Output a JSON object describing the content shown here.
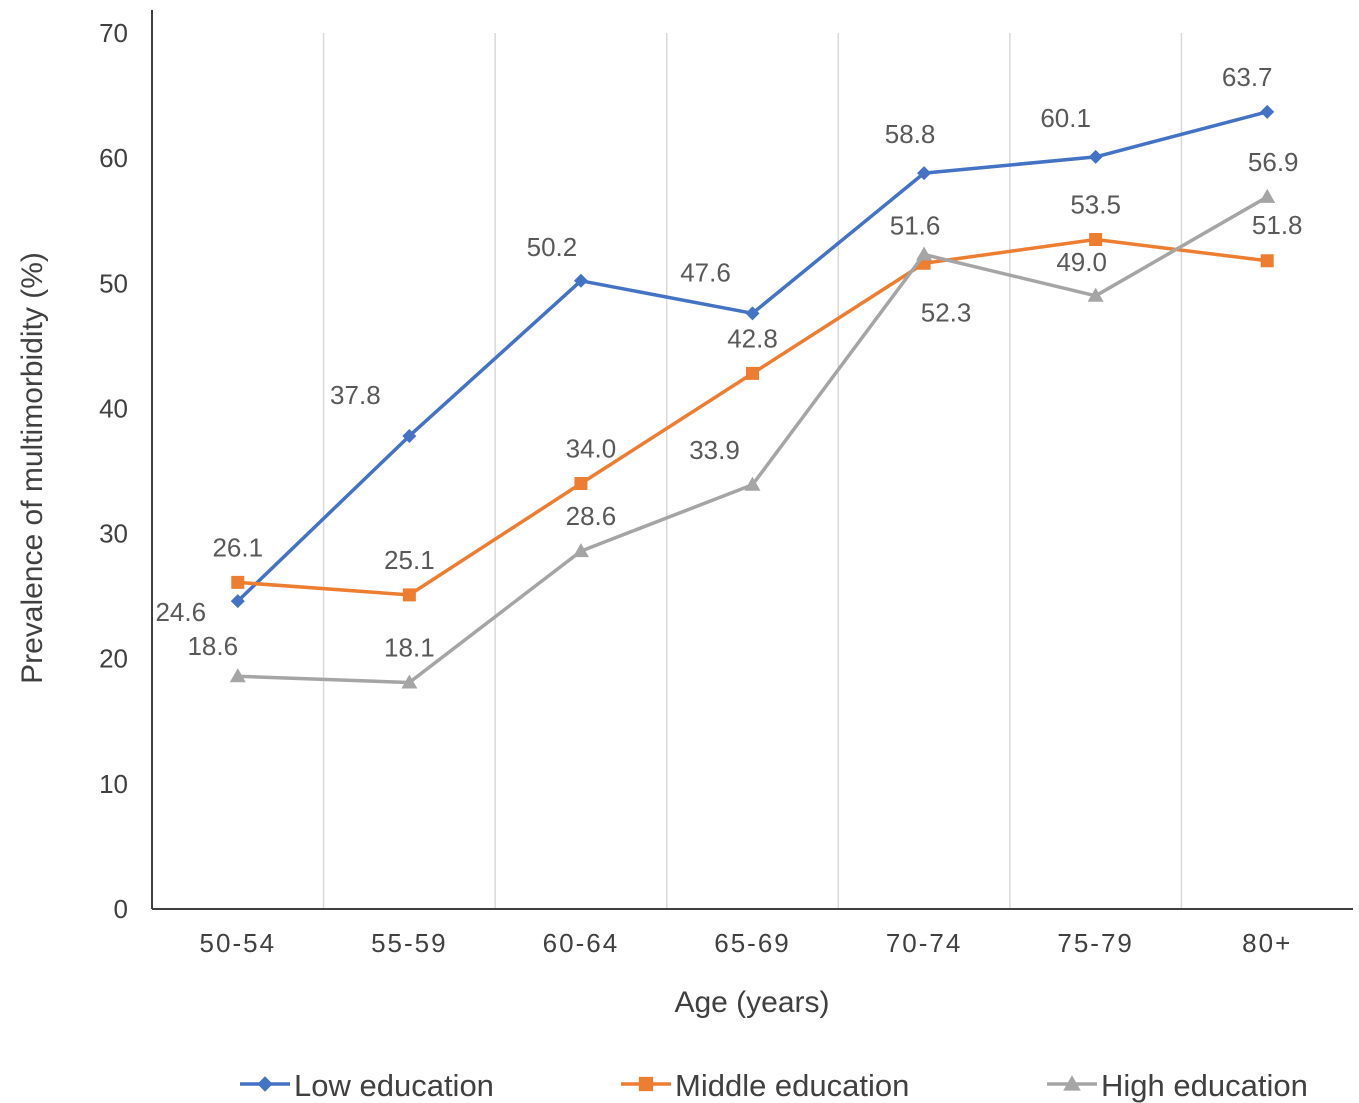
{
  "chart_data": {
    "type": "line",
    "title": "",
    "xlabel": "Age (years)",
    "ylabel": "Prevalence of multimorbidity (%)",
    "categories": [
      "50-54",
      "55-59",
      "60-64",
      "65-69",
      "70-74",
      "75-79",
      "80+"
    ],
    "ylim": [
      0,
      70
    ],
    "yticks": [
      "0",
      "10",
      "20",
      "30",
      "40",
      "50",
      "60",
      "70"
    ],
    "grid": "vertical",
    "legend_position": "bottom",
    "series": [
      {
        "name": "Low education",
        "color": "#4472c4",
        "marker": "diamond",
        "values": [
          24.6,
          37.8,
          50.2,
          47.6,
          58.8,
          60.1,
          63.7
        ],
        "labels": [
          "24.6",
          "37.8",
          "50.2",
          "47.6",
          "58.8",
          "60.1",
          "63.7"
        ]
      },
      {
        "name": "Middle education",
        "color": "#ed7d31",
        "marker": "square",
        "values": [
          26.1,
          25.1,
          34.0,
          42.8,
          51.6,
          53.5,
          51.8
        ],
        "labels": [
          "26.1",
          "25.1",
          "34.0",
          "42.8",
          "51.6",
          "53.5",
          "51.8"
        ]
      },
      {
        "name": "High education",
        "color": "#a5a5a5",
        "marker": "triangle",
        "values": [
          18.6,
          18.1,
          28.6,
          33.9,
          52.3,
          49.0,
          56.9
        ],
        "labels": [
          "18.6",
          "18.1",
          "28.6",
          "33.9",
          "52.3",
          "49.0",
          "56.9"
        ]
      }
    ]
  }
}
